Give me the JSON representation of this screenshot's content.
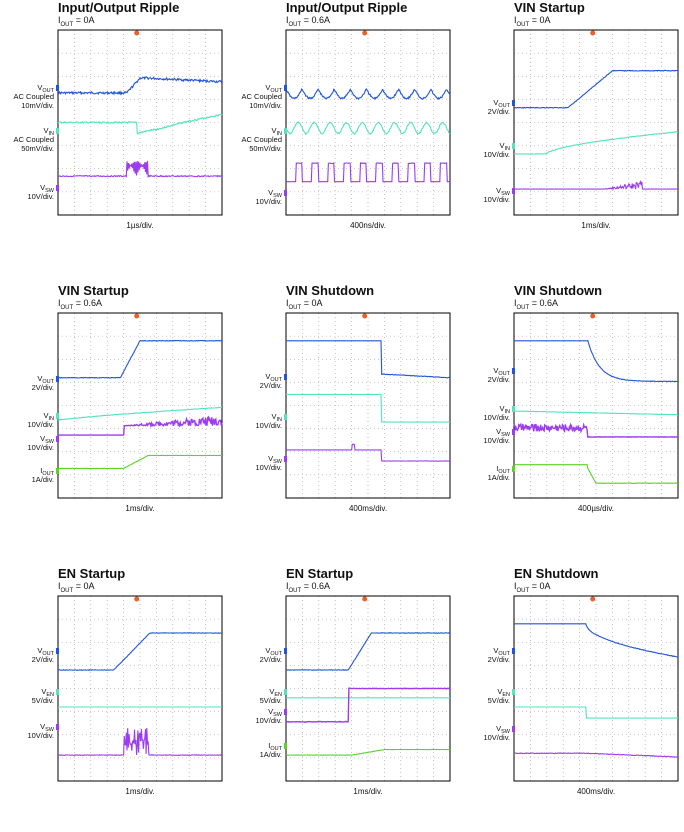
{
  "colors": {
    "vout": "#2255d4",
    "vin": "#52e3bf",
    "vsw": "#9b3cf0",
    "iout": "#5ad420",
    "ven": "#52e3bf",
    "trigger": "#e8602a"
  },
  "chart_data": [
    {
      "type": "line",
      "title": "Input/Output Ripple",
      "subtitle": "IOUT = 0A",
      "timebase": "1µs/div.",
      "channels": [
        {
          "name": "VOUT",
          "scale": "AC Coupled 10mV/div.",
          "color": "vout"
        },
        {
          "name": "VIN",
          "scale": "AC Coupled 50mV/div.",
          "color": "vin"
        },
        {
          "name": "VSW",
          "scale": "10V/div.",
          "color": "vsw"
        }
      ]
    },
    {
      "type": "line",
      "title": "Input/Output Ripple",
      "subtitle": "IOUT = 0.6A",
      "timebase": "400ns/div.",
      "channels": [
        {
          "name": "VOUT",
          "scale": "AC Coupled 10mV/div.",
          "color": "vout"
        },
        {
          "name": "VIN",
          "scale": "AC Coupled 50mV/div.",
          "color": "vin"
        },
        {
          "name": "VSW",
          "scale": "10V/div.",
          "color": "vsw"
        }
      ]
    },
    {
      "type": "line",
      "title": "VIN Startup",
      "subtitle": "IOUT = 0A",
      "timebase": "1ms/div.",
      "channels": [
        {
          "name": "VOUT",
          "scale": "2V/div.",
          "color": "vout"
        },
        {
          "name": "VIN",
          "scale": "10V/div.",
          "color": "vin"
        },
        {
          "name": "VSW",
          "scale": "10V/div.",
          "color": "vsw"
        }
      ]
    },
    {
      "type": "line",
      "title": "VIN Startup",
      "subtitle": "IOUT = 0.6A",
      "timebase": "1ms/div.",
      "channels": [
        {
          "name": "VOUT",
          "scale": "2V/div.",
          "color": "vout"
        },
        {
          "name": "VIN",
          "scale": "10V/div.",
          "color": "vin"
        },
        {
          "name": "VSW",
          "scale": "10V/div.",
          "color": "vsw"
        },
        {
          "name": "IOUT",
          "scale": "1A/div.",
          "color": "iout"
        }
      ]
    },
    {
      "type": "line",
      "title": "VIN Shutdown",
      "subtitle": "IOUT = 0A",
      "timebase": "400ms/div.",
      "channels": [
        {
          "name": "VOUT",
          "scale": "2V/div.",
          "color": "vout"
        },
        {
          "name": "VIN",
          "scale": "10V/div.",
          "color": "vin"
        },
        {
          "name": "VSW",
          "scale": "10V/div.",
          "color": "vsw"
        }
      ]
    },
    {
      "type": "line",
      "title": "VIN Shutdown",
      "subtitle": "IOUT = 0.6A",
      "timebase": "400µs/div.",
      "channels": [
        {
          "name": "VOUT",
          "scale": "2V/div.",
          "color": "vout"
        },
        {
          "name": "VIN",
          "scale": "10V/div.",
          "color": "vin"
        },
        {
          "name": "VSW",
          "scale": "10V/div.",
          "color": "vsw"
        },
        {
          "name": "IOUT",
          "scale": "1A/div.",
          "color": "iout"
        }
      ]
    },
    {
      "type": "line",
      "title": "EN Startup",
      "subtitle": "IOUT = 0A",
      "timebase": "1ms/div.",
      "channels": [
        {
          "name": "VOUT",
          "scale": "2V/div.",
          "color": "vout"
        },
        {
          "name": "VEN",
          "scale": "5V/div.",
          "color": "ven"
        },
        {
          "name": "VSW",
          "scale": "10V/div.",
          "color": "vsw"
        }
      ]
    },
    {
      "type": "line",
      "title": "EN Startup",
      "subtitle": "IOUT = 0.6A",
      "timebase": "1ms/div.",
      "channels": [
        {
          "name": "VOUT",
          "scale": "2V/div.",
          "color": "vout"
        },
        {
          "name": "VEN",
          "scale": "5V/div.",
          "color": "ven"
        },
        {
          "name": "VSW",
          "scale": "10V/div.",
          "color": "vsw"
        },
        {
          "name": "IOUT",
          "scale": "1A/div.",
          "color": "iout"
        }
      ]
    },
    {
      "type": "line",
      "title": "EN Shutdown",
      "subtitle": "IOUT = 0A",
      "timebase": "400ms/div.",
      "channels": [
        {
          "name": "VOUT",
          "scale": "2V/div.",
          "color": "vout"
        },
        {
          "name": "VEN",
          "scale": "5V/div.",
          "color": "ven"
        },
        {
          "name": "VSW",
          "scale": "10V/div.",
          "color": "vsw"
        }
      ]
    }
  ]
}
